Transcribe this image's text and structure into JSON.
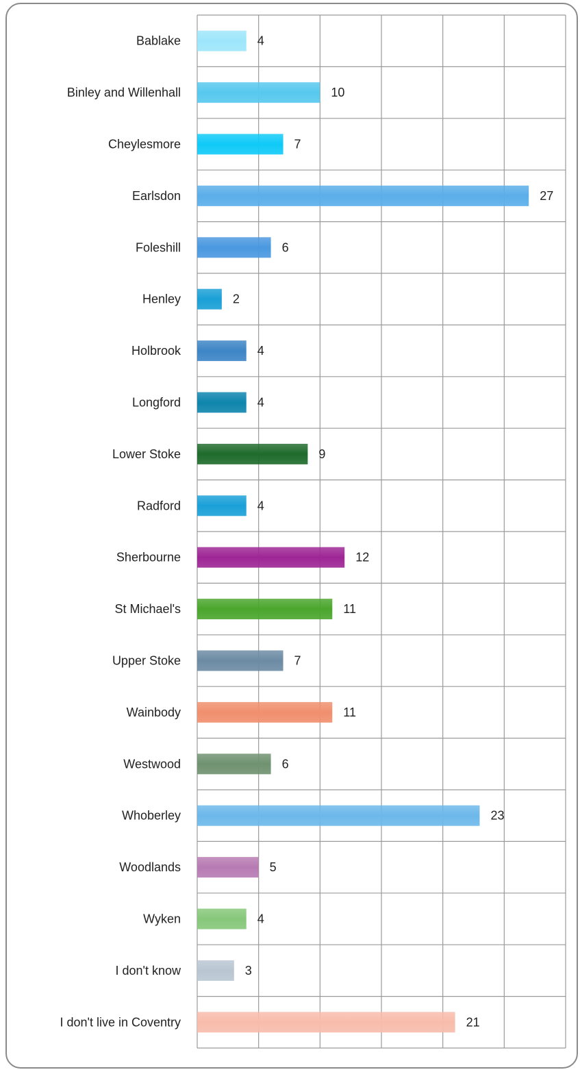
{
  "chart_data": {
    "type": "bar",
    "orientation": "horizontal",
    "categories": [
      "Bablake",
      "Binley and Willenhall",
      "Cheylesmore",
      "Earlsdon",
      "Foleshill",
      "Henley",
      "Holbrook",
      "Longford",
      "Lower Stoke",
      "Radford",
      "Sherbourne",
      "St Michael's",
      "Upper Stoke",
      "Wainbody",
      "Westwood",
      "Whoberley",
      "Woodlands",
      "Wyken",
      "I don't know",
      "I don't live in Coventry"
    ],
    "values": [
      4,
      10,
      7,
      27,
      6,
      2,
      4,
      4,
      9,
      4,
      12,
      11,
      7,
      11,
      6,
      23,
      5,
      4,
      3,
      21
    ],
    "colors": [
      "#9ee6fb",
      "#57c8ee",
      "#0fcaf7",
      "#5aaee9",
      "#4a98e0",
      "#1aa0d6",
      "#3d85c6",
      "#0e85ad",
      "#1e6b2c",
      "#1aa0d8",
      "#9e2695",
      "#4aa62c",
      "#6c8ba4",
      "#f08f6e",
      "#6f9270",
      "#6cb8ea",
      "#b77bb3",
      "#86c77a",
      "#b9c6d2",
      "#f8bcab"
    ],
    "title": "",
    "xlabel": "",
    "ylabel": "",
    "xlim": [
      0,
      30
    ],
    "x_grid_step": 5,
    "grid": true,
    "legend": "none",
    "data_labels": true
  }
}
